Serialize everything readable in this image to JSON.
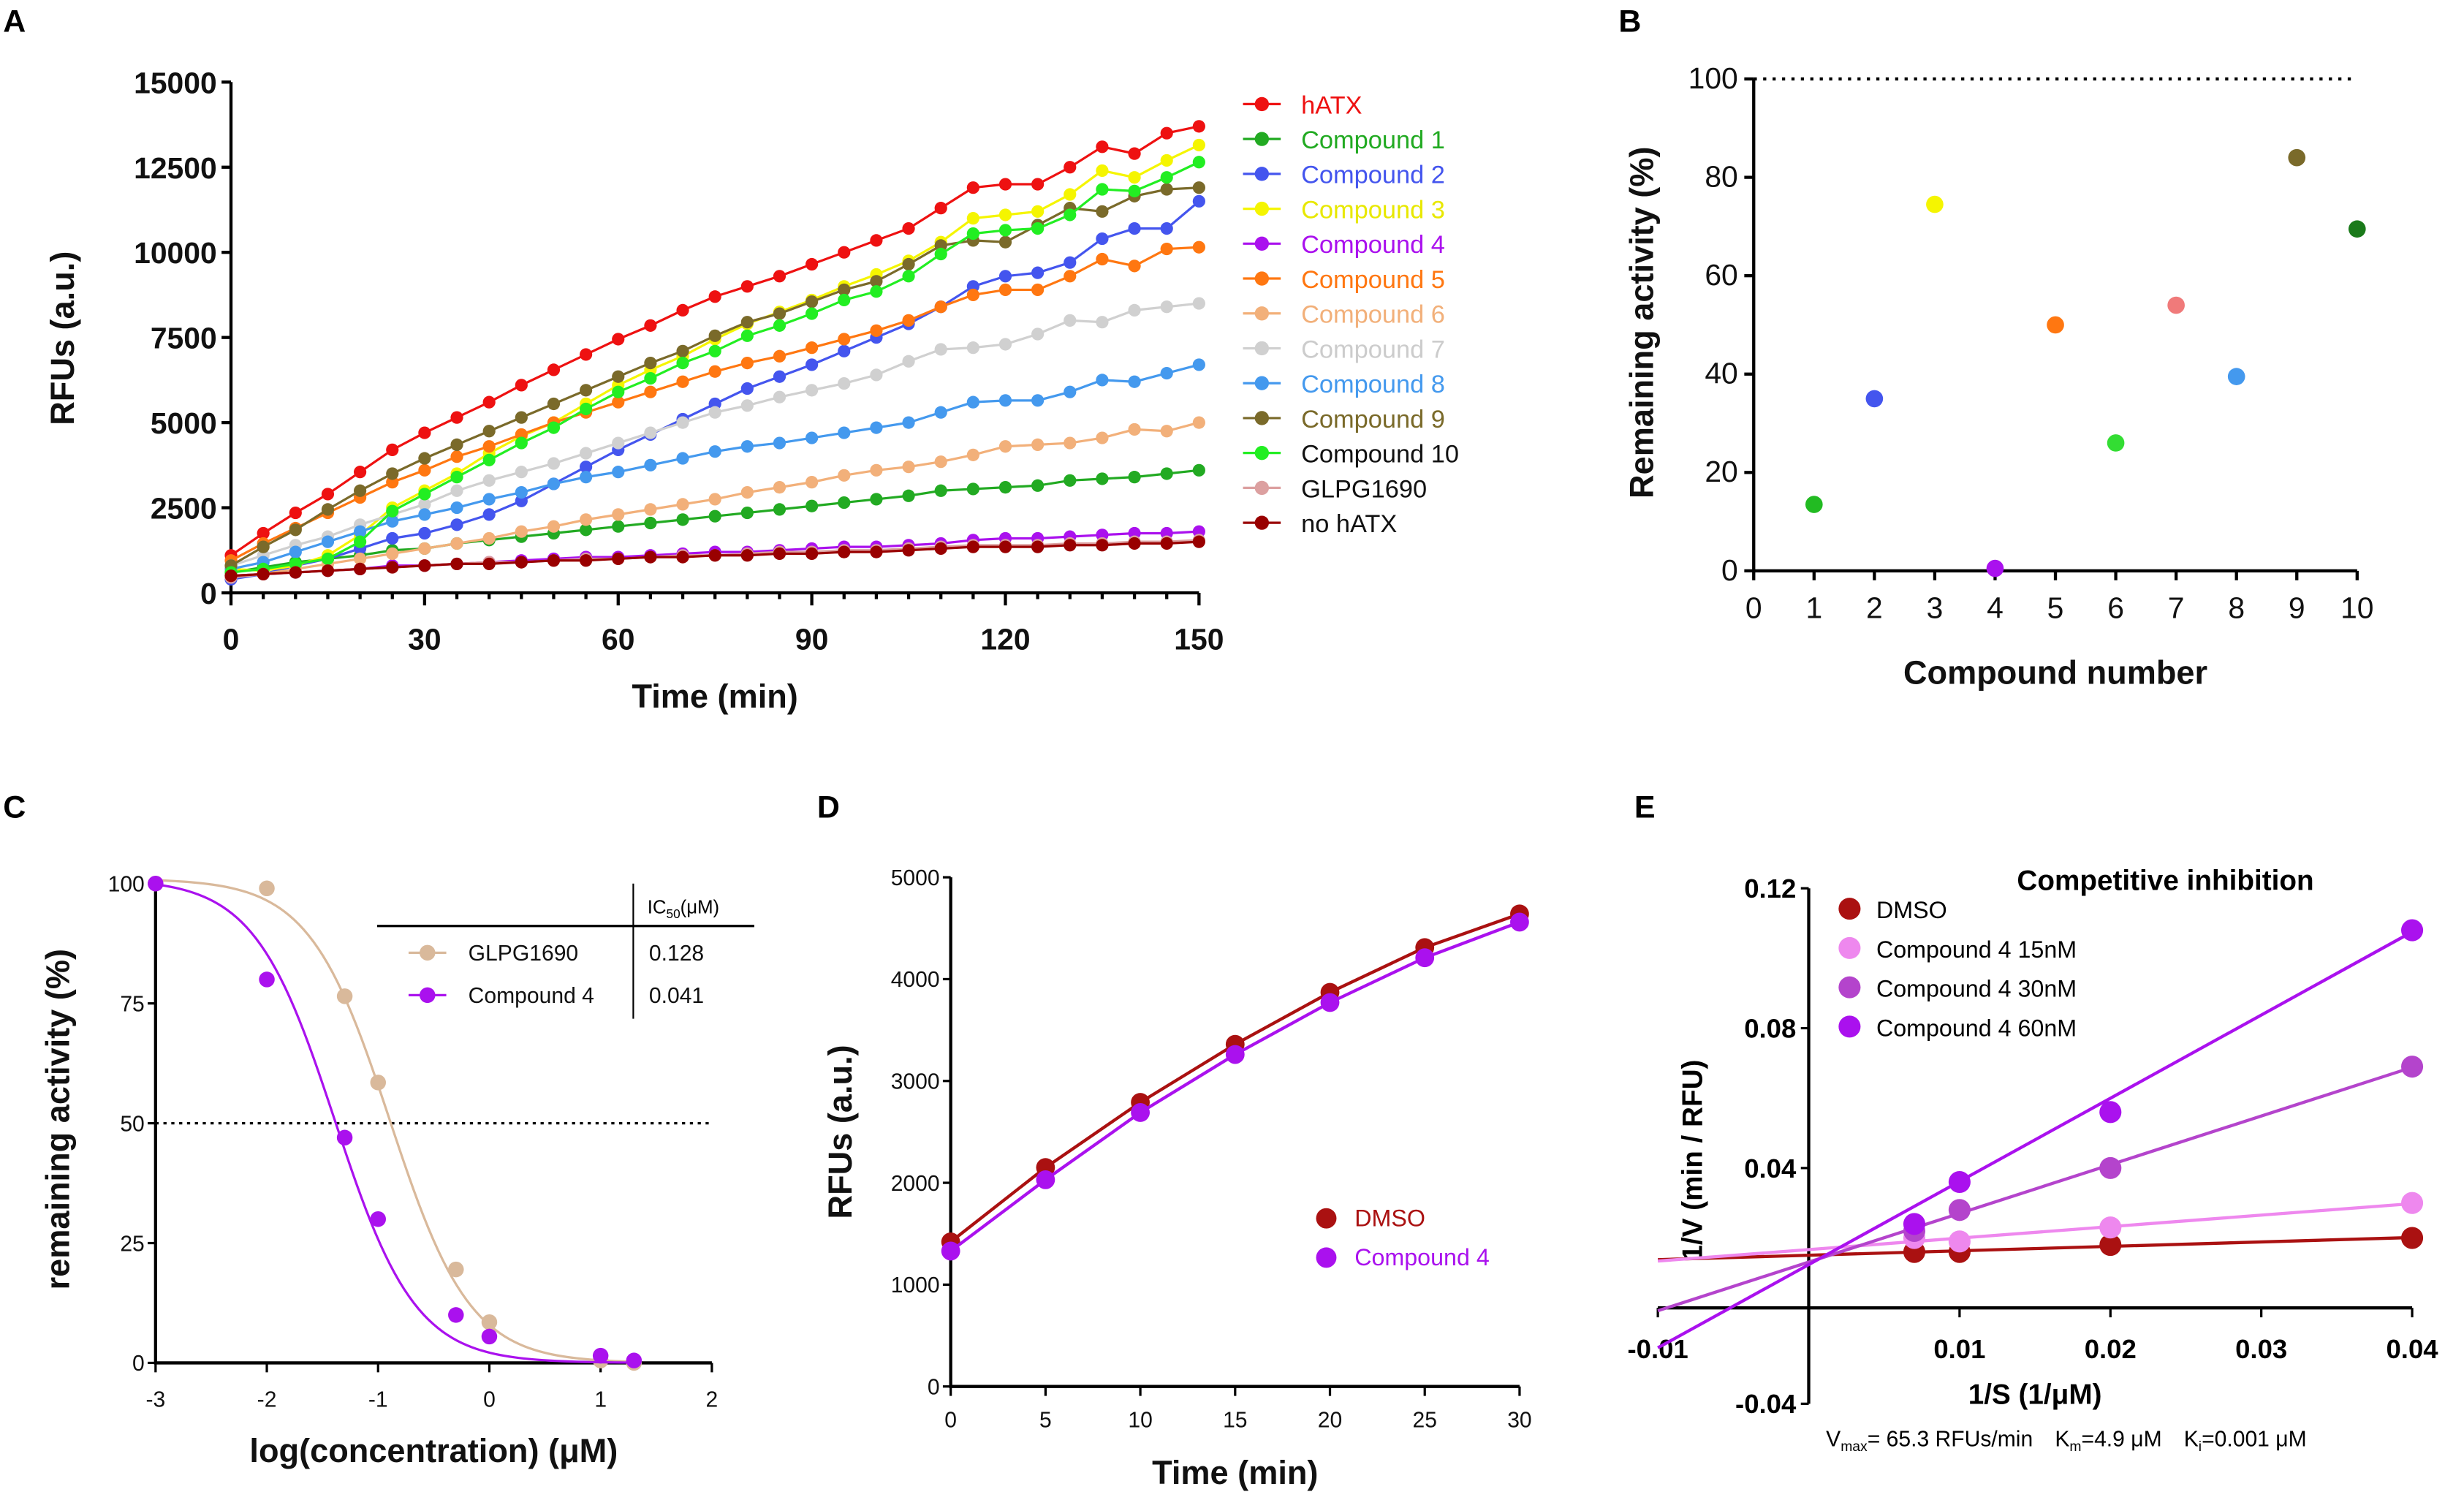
{
  "chart_data": [
    {
      "panel": "A",
      "type": "line",
      "xlabel": "Time (min)",
      "ylabel": "RFUs (a.u.)",
      "xlim": [
        0,
        150
      ],
      "ylim": [
        0,
        15000
      ],
      "xticks": [
        0,
        30,
        60,
        90,
        120,
        150
      ],
      "yticks": [
        0,
        2500,
        5000,
        7500,
        10000,
        12500,
        15000
      ],
      "legend_position": "right",
      "x": [
        0,
        5,
        10,
        15,
        20,
        25,
        30,
        35,
        40,
        45,
        50,
        55,
        60,
        65,
        70,
        75,
        80,
        85,
        90,
        95,
        100,
        105,
        110,
        115,
        120,
        125,
        130,
        135,
        140,
        145,
        150
      ],
      "series": [
        {
          "name": "hATX",
          "color": "#ee1111",
          "label_color": "#ee1111",
          "values": [
            1100,
            1750,
            2350,
            2900,
            3550,
            4200,
            4700,
            5150,
            5600,
            6100,
            6550,
            7000,
            7450,
            7850,
            8300,
            8700,
            9000,
            9300,
            9650,
            10000,
            10350,
            10700,
            11300,
            11900,
            12000,
            12000,
            12500,
            13100,
            12900,
            13500,
            13700
          ]
        },
        {
          "name": "Compound 1",
          "color": "#22aa22",
          "label_color": "#22aa22",
          "values": [
            600,
            750,
            900,
            1000,
            1100,
            1250,
            1300,
            1450,
            1550,
            1650,
            1750,
            1850,
            1950,
            2050,
            2150,
            2250,
            2350,
            2450,
            2550,
            2650,
            2750,
            2850,
            3000,
            3050,
            3100,
            3150,
            3300,
            3350,
            3400,
            3500,
            3600
          ]
        },
        {
          "name": "Compound 2",
          "color": "#4455ee",
          "label_color": "#4455ee",
          "values": [
            400,
            550,
            800,
            1000,
            1300,
            1600,
            1750,
            2000,
            2300,
            2700,
            3200,
            3700,
            4200,
            4650,
            5100,
            5550,
            6000,
            6350,
            6700,
            7100,
            7500,
            7900,
            8400,
            9000,
            9300,
            9400,
            9700,
            10400,
            10700,
            10700,
            11500
          ]
        },
        {
          "name": "Compound 3",
          "color": "#f5f500",
          "label_color": "#e8e800",
          "values": [
            700,
            650,
            800,
            1100,
            1700,
            2500,
            3000,
            3500,
            4100,
            4600,
            5000,
            5550,
            6100,
            6550,
            6950,
            7450,
            7900,
            8250,
            8600,
            9000,
            9350,
            9750,
            10300,
            11000,
            11100,
            11200,
            11700,
            12400,
            12200,
            12700,
            13150
          ]
        },
        {
          "name": "Compound 4",
          "color": "#aa11ee",
          "label_color": "#aa11ee",
          "values": [
            500,
            550,
            600,
            650,
            700,
            800,
            800,
            850,
            900,
            950,
            1000,
            1050,
            1050,
            1100,
            1150,
            1200,
            1200,
            1250,
            1300,
            1350,
            1350,
            1400,
            1450,
            1550,
            1600,
            1600,
            1650,
            1700,
            1750,
            1750,
            1800
          ]
        },
        {
          "name": "Compound 5",
          "color": "#ff7711",
          "label_color": "#ff7711",
          "values": [
            950,
            1450,
            1900,
            2350,
            2800,
            3250,
            3600,
            4000,
            4300,
            4650,
            5000,
            5300,
            5600,
            5900,
            6200,
            6500,
            6750,
            6950,
            7200,
            7450,
            7700,
            8000,
            8400,
            8750,
            8900,
            8900,
            9300,
            9800,
            9600,
            10100,
            10150
          ]
        },
        {
          "name": "Compound 6",
          "color": "#f2b07a",
          "label_color": "#f2b07a",
          "values": [
            500,
            550,
            700,
            850,
            1000,
            1150,
            1300,
            1450,
            1600,
            1800,
            1950,
            2150,
            2300,
            2450,
            2600,
            2750,
            2950,
            3100,
            3250,
            3450,
            3600,
            3700,
            3850,
            4050,
            4300,
            4350,
            4400,
            4550,
            4800,
            4750,
            5000
          ]
        },
        {
          "name": "Compound 7",
          "color": "#d0d0d0",
          "label_color": "#cccccc",
          "values": [
            800,
            1100,
            1400,
            1650,
            2000,
            2300,
            2600,
            3000,
            3300,
            3550,
            3800,
            4100,
            4400,
            4700,
            5000,
            5300,
            5500,
            5750,
            5950,
            6150,
            6400,
            6800,
            7150,
            7200,
            7300,
            7600,
            8000,
            7950,
            8300,
            8400,
            8500
          ]
        },
        {
          "name": "Compound 8",
          "color": "#4499ee",
          "label_color": "#4499ee",
          "values": [
            700,
            900,
            1200,
            1500,
            1800,
            2100,
            2300,
            2500,
            2750,
            2950,
            3200,
            3400,
            3550,
            3750,
            3950,
            4150,
            4300,
            4400,
            4550,
            4700,
            4850,
            5000,
            5300,
            5600,
            5650,
            5650,
            5900,
            6250,
            6200,
            6450,
            6700
          ]
        },
        {
          "name": "Compound 9",
          "color": "#7a6a2a",
          "label_color": "#7a6a2a",
          "values": [
            800,
            1350,
            1850,
            2450,
            3000,
            3500,
            3950,
            4350,
            4750,
            5150,
            5550,
            5950,
            6350,
            6750,
            7100,
            7550,
            7950,
            8200,
            8550,
            8900,
            9150,
            9650,
            10200,
            10350,
            10300,
            10800,
            11300,
            11200,
            11650,
            11850,
            11900
          ]
        },
        {
          "name": "Compound 10",
          "color": "#22ee22",
          "label_color": "#111111",
          "values": [
            600,
            700,
            850,
            1000,
            1500,
            2400,
            2900,
            3400,
            3900,
            4400,
            4850,
            5400,
            5900,
            6300,
            6750,
            7100,
            7550,
            7850,
            8200,
            8600,
            8850,
            9300,
            9950,
            10550,
            10650,
            10700,
            11100,
            11850,
            11800,
            12200,
            12650
          ]
        },
        {
          "name": "GLPG1690",
          "color": "#dca0a0",
          "label_color": "#111111",
          "values": [
            450,
            550,
            600,
            650,
            700,
            750,
            800,
            850,
            900,
            900,
            950,
            1000,
            1000,
            1050,
            1100,
            1100,
            1150,
            1200,
            1200,
            1250,
            1250,
            1300,
            1350,
            1400,
            1400,
            1400,
            1450,
            1450,
            1500,
            1500,
            1550
          ]
        },
        {
          "name": "no hATX",
          "color": "#990000",
          "label_color": "#111111",
          "values": [
            500,
            550,
            600,
            650,
            700,
            750,
            800,
            850,
            850,
            900,
            950,
            950,
            1000,
            1050,
            1050,
            1100,
            1100,
            1150,
            1150,
            1200,
            1200,
            1250,
            1300,
            1350,
            1350,
            1350,
            1400,
            1400,
            1450,
            1450,
            1500
          ]
        }
      ]
    },
    {
      "panel": "B",
      "type": "scatter",
      "xlabel": "Compound number",
      "ylabel": "Remaining activity (%)",
      "xlim": [
        0,
        10
      ],
      "ylim": [
        0,
        100
      ],
      "xticks": [
        0,
        1,
        2,
        3,
        4,
        5,
        6,
        7,
        8,
        9,
        10
      ],
      "yticks": [
        0,
        20,
        40,
        60,
        80,
        100
      ],
      "reference_line": 100,
      "x": [
        1,
        2,
        3,
        4,
        5,
        6,
        7,
        8,
        9,
        10
      ],
      "values": [
        13.5,
        35,
        74.5,
        0.5,
        50,
        26,
        54,
        39.5,
        84,
        69.5
      ],
      "colors": [
        "#22bb22",
        "#4455ee",
        "#f5f500",
        "#aa11ee",
        "#ff7711",
        "#33dd33",
        "#f07a7a",
        "#4499ee",
        "#7a6a2a",
        "#1a7a1a"
      ]
    },
    {
      "panel": "C",
      "type": "scatter",
      "xlabel": "log(concentration) (μM)",
      "ylabel": "remaining activity (%)",
      "xlim": [
        -3,
        2
      ],
      "ylim": [
        0,
        100
      ],
      "xticks": [
        -3,
        -2,
        -1,
        0,
        1,
        2
      ],
      "yticks": [
        0,
        25,
        50,
        75,
        100
      ],
      "reference_line": 50,
      "table": {
        "header": "IC50(μM)",
        "header_main": "IC",
        "header_sub": "50",
        "header_unit": "(μM)"
      },
      "series": [
        {
          "name": "GLPG1690",
          "color": "#d9b99b",
          "ic50": "0.128",
          "x": [
            -3,
            -2,
            -1.3,
            -1,
            -0.3,
            0,
            1,
            1.3
          ],
          "values": [
            100,
            99,
            76.5,
            58.5,
            19.5,
            8.5,
            0.5,
            0
          ]
        },
        {
          "name": "Compound 4",
          "color": "#aa11ee",
          "ic50": "0.041",
          "x": [
            -3,
            -2,
            -1.3,
            -1,
            -0.3,
            0,
            1,
            1.3
          ],
          "values": [
            100,
            80,
            47,
            30,
            10,
            5.5,
            1.5,
            0.5
          ]
        }
      ]
    },
    {
      "panel": "D",
      "type": "line",
      "xlabel": "Time (min)",
      "ylabel": "RFUs (a.u.)",
      "xlim": [
        0,
        30
      ],
      "ylim": [
        0,
        5000
      ],
      "xticks": [
        0,
        5,
        10,
        15,
        20,
        25,
        30
      ],
      "yticks": [
        0,
        1000,
        2000,
        3000,
        4000,
        5000
      ],
      "legend_position": "center-right",
      "x": [
        0,
        5,
        10,
        15,
        20,
        25,
        30
      ],
      "series": [
        {
          "name": "DMSO",
          "color": "#aa1111",
          "values": [
            1420,
            2150,
            2790,
            3360,
            3870,
            4310,
            4640
          ]
        },
        {
          "name": "Compound 4",
          "color": "#aa11ee",
          "values": [
            1330,
            2030,
            2690,
            3260,
            3770,
            4210,
            4560
          ]
        }
      ]
    },
    {
      "panel": "E",
      "type": "scatter",
      "title": "Competitive inhibition",
      "xlabel": "1/S (1/μM)",
      "ylabel": "1/V (min / RFU)",
      "xlim": [
        -0.01,
        0.04
      ],
      "ylim": [
        -0.04,
        0.12
      ],
      "xticks": [
        "-0.01",
        "0.01",
        "0.02",
        "0.03",
        "0.04"
      ],
      "yticks": [
        "0.12",
        "0.08",
        "0.04",
        "-0.04"
      ],
      "legend_position": "top-left",
      "footnote": {
        "vmax": "= 65.3 RFUs/min",
        "km": "=4.9 μM",
        "ki": "=0.001 μM"
      },
      "x": [
        0.007,
        0.01,
        0.02,
        0.04
      ],
      "series": [
        {
          "name": "DMSO",
          "color": "#aa1111",
          "values": [
            0.016,
            0.016,
            0.018,
            0.02
          ]
        },
        {
          "name": "Compound 4 15nM",
          "color": "#ee88ee",
          "values": [
            0.02,
            0.019,
            0.023,
            0.03
          ]
        },
        {
          "name": "Compound 4 30nM",
          "color": "#b444cc",
          "values": [
            0.022,
            0.028,
            0.04,
            0.069
          ]
        },
        {
          "name": "Compound 4 60nM",
          "color": "#aa11ee",
          "values": [
            0.024,
            0.036,
            0.056,
            0.108
          ]
        }
      ]
    }
  ],
  "panels": {
    "a": "A",
    "b": "B",
    "c": "C",
    "d": "D",
    "e": "E"
  }
}
